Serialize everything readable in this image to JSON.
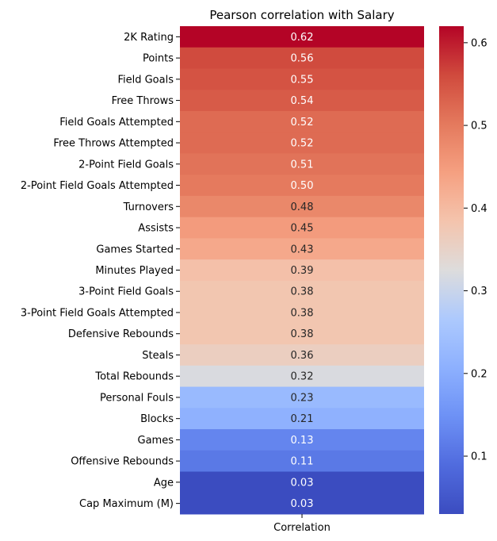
{
  "chart_data": {
    "type": "heatmap",
    "title": "Pearson correlation with Salary",
    "x_categories": [
      "Correlation"
    ],
    "rows": [
      {
        "label": "2K Rating",
        "value": 0.62,
        "text": "0.62"
      },
      {
        "label": "Points",
        "value": 0.56,
        "text": "0.56"
      },
      {
        "label": "Field Goals",
        "value": 0.55,
        "text": "0.55"
      },
      {
        "label": "Free Throws",
        "value": 0.54,
        "text": "0.54"
      },
      {
        "label": "Field Goals Attempted",
        "value": 0.52,
        "text": "0.52"
      },
      {
        "label": "Free Throws Attempted",
        "value": 0.52,
        "text": "0.52"
      },
      {
        "label": "2-Point Field Goals",
        "value": 0.51,
        "text": "0.51"
      },
      {
        "label": "2-Point Field Goals Attempted",
        "value": 0.5,
        "text": "0.50"
      },
      {
        "label": "Turnovers",
        "value": 0.48,
        "text": "0.48"
      },
      {
        "label": "Assists",
        "value": 0.45,
        "text": "0.45"
      },
      {
        "label": "Games Started",
        "value": 0.43,
        "text": "0.43"
      },
      {
        "label": "Minutes Played",
        "value": 0.39,
        "text": "0.39"
      },
      {
        "label": "3-Point Field Goals",
        "value": 0.38,
        "text": "0.38"
      },
      {
        "label": "3-Point Field Goals Attempted",
        "value": 0.38,
        "text": "0.38"
      },
      {
        "label": "Defensive Rebounds",
        "value": 0.38,
        "text": "0.38"
      },
      {
        "label": "Steals",
        "value": 0.36,
        "text": "0.36"
      },
      {
        "label": "Total Rebounds",
        "value": 0.32,
        "text": "0.32"
      },
      {
        "label": "Personal Fouls",
        "value": 0.23,
        "text": "0.23"
      },
      {
        "label": "Blocks",
        "value": 0.21,
        "text": "0.21"
      },
      {
        "label": "Games",
        "value": 0.13,
        "text": "0.13"
      },
      {
        "label": "Offensive Rebounds",
        "value": 0.11,
        "text": "0.11"
      },
      {
        "label": "Age",
        "value": 0.03,
        "text": "0.03"
      },
      {
        "label": "Cap Maximum (M)",
        "value": 0.03,
        "text": "0.03"
      }
    ],
    "colorbar": {
      "colormap": "coolwarm",
      "range": [
        0.03,
        0.62
      ],
      "ticks": [
        0.1,
        0.2,
        0.3,
        0.4,
        0.5,
        0.6
      ],
      "tick_labels": [
        "0.1",
        "0.2",
        "0.3",
        "0.4",
        "0.5",
        "0.6"
      ]
    }
  }
}
